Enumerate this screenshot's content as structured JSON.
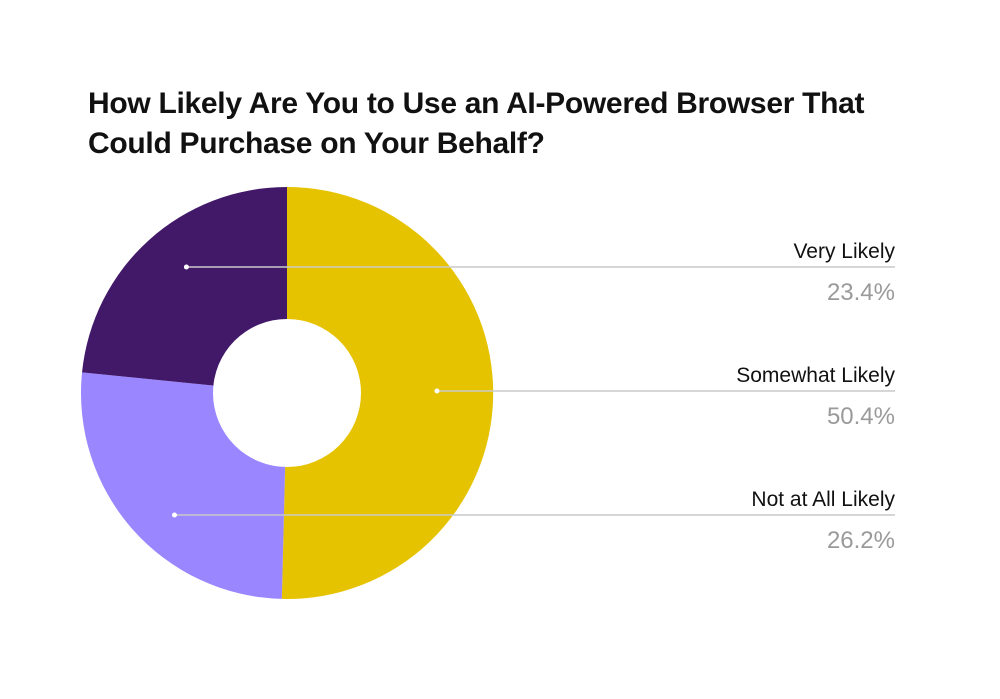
{
  "chart_data": {
    "type": "pie",
    "variant": "donut",
    "title": "How Likely Are You to Use an AI-Powered Browser That Could Purchase on Your Behalf?",
    "legend_position": "right",
    "slices": [
      {
        "label": "Very Likely",
        "value": 23.4,
        "display": "23.4%",
        "color": "#421869"
      },
      {
        "label": "Somewhat Likely",
        "value": 50.4,
        "display": "50.4%",
        "color": "#E6C300"
      },
      {
        "label": "Not at All Likely",
        "value": 26.2,
        "display": "26.2%",
        "color": "#9A87FF"
      }
    ],
    "slice_order_clockwise_from_top": [
      "Somewhat Likely",
      "Not at All Likely",
      "Very Likely"
    ]
  }
}
